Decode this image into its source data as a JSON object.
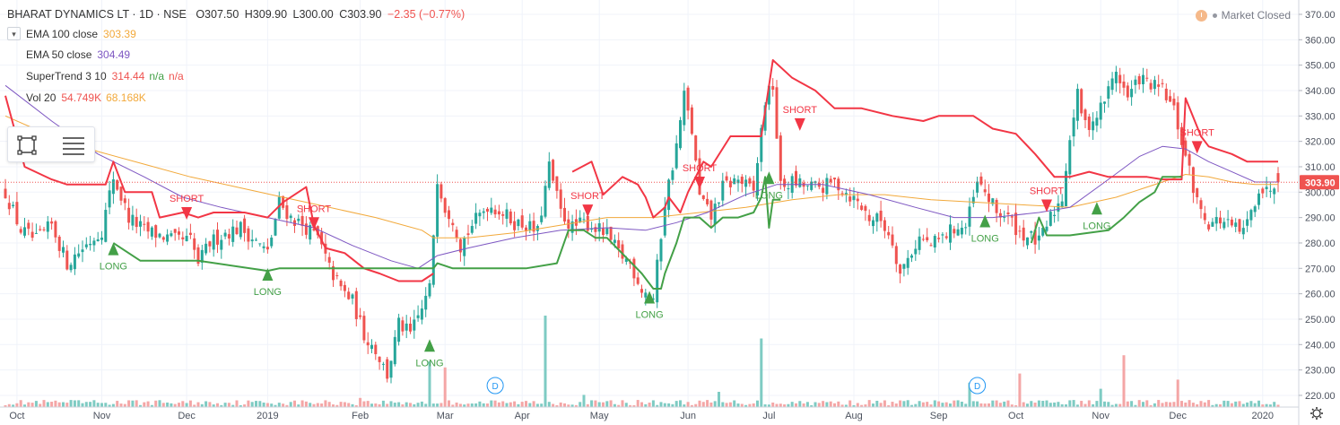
{
  "header": {
    "symbol": "BHARAT DYNAMICS LT",
    "sep1": "·",
    "interval": "1D",
    "sep2": "·",
    "exchange": "NSE",
    "o_label": "O",
    "o_value": "307.50",
    "h_label": "H",
    "h_value": "309.90",
    "l_label": "L",
    "l_value": "300.00",
    "c_label": "C",
    "c_value": "303.90",
    "change": "−2.35 (−0.77%)"
  },
  "market_status": "Market Closed",
  "indicators": [
    {
      "name": "EMA 100 close",
      "values": [
        "303.39"
      ],
      "colors": [
        "#f2a93b"
      ],
      "has_toggle": true
    },
    {
      "name": "EMA 50 close",
      "values": [
        "304.49"
      ],
      "colors": [
        "#7e57c2"
      ],
      "has_toggle": false
    },
    {
      "name": "SuperTrend 3 10",
      "values": [
        "314.44",
        "n/a",
        "n/a"
      ],
      "colors": [
        "#ef5350",
        "#43a047",
        "#ef5350"
      ],
      "has_toggle": false
    },
    {
      "name": "Vol 20",
      "values": [
        "54.749K",
        "68.168K"
      ],
      "colors": [
        "#ef5350",
        "#f2a93b"
      ],
      "has_toggle": false
    }
  ],
  "colors": {
    "up": "#26a69a",
    "down": "#ef5350",
    "st_up": "#43a047",
    "st_down": "#f23645",
    "ema100": "#f2a93b",
    "ema50": "#7e57c2",
    "vol_up": "#7ecbc3",
    "vol_down": "#f4a6a6"
  },
  "chart_data": {
    "type": "candlestick",
    "title": "BHARAT DYNAMICS LT · 1D · NSE",
    "ylim": [
      217,
      372
    ],
    "y_ticks": [
      220,
      230,
      240,
      250,
      260,
      270,
      280,
      290,
      300,
      310,
      320,
      330,
      340,
      350,
      360,
      370
    ],
    "y_tick_labels": [
      "220.00",
      "230.00",
      "240.00",
      "250.00",
      "260.00",
      "270.00",
      "280.00",
      "290.00",
      "300.00",
      "310.00",
      "320.00",
      "330.00",
      "340.00",
      "350.00",
      "360.00",
      "370.00"
    ],
    "x_ticks": [
      {
        "label": "Oct",
        "bar": 3
      },
      {
        "label": "Nov",
        "bar": 25
      },
      {
        "label": "Dec",
        "bar": 47
      },
      {
        "label": "2019",
        "bar": 68
      },
      {
        "label": "Feb",
        "bar": 92
      },
      {
        "label": "Mar",
        "bar": 114
      },
      {
        "label": "Apr",
        "bar": 134
      },
      {
        "label": "May",
        "bar": 154
      },
      {
        "label": "Jun",
        "bar": 177
      },
      {
        "label": "Jul",
        "bar": 198
      },
      {
        "label": "Aug",
        "bar": 220
      },
      {
        "label": "Sep",
        "bar": 242
      },
      {
        "label": "Oct",
        "bar": 262
      },
      {
        "label": "Nov",
        "bar": 284
      },
      {
        "label": "Dec",
        "bar": 304
      },
      {
        "label": "2020",
        "bar": 326
      }
    ],
    "last_price": 303.9,
    "last_price_label": "303.90",
    "close_anchors": [
      [
        0,
        300
      ],
      [
        4,
        285
      ],
      [
        8,
        281
      ],
      [
        12,
        287
      ],
      [
        16,
        272
      ],
      [
        20,
        278
      ],
      [
        25,
        285
      ],
      [
        28,
        306
      ],
      [
        32,
        290
      ],
      [
        36,
        285
      ],
      [
        40,
        283
      ],
      [
        44,
        281
      ],
      [
        48,
        281
      ],
      [
        50,
        272
      ],
      [
        53,
        280
      ],
      [
        57,
        284
      ],
      [
        61,
        286
      ],
      [
        64,
        282
      ],
      [
        68,
        276
      ],
      [
        71,
        296
      ],
      [
        74,
        290
      ],
      [
        78,
        286
      ],
      [
        81,
        282
      ],
      [
        84,
        270
      ],
      [
        87,
        262
      ],
      [
        90,
        257
      ],
      [
        93,
        244
      ],
      [
        96,
        238
      ],
      [
        99,
        228
      ],
      [
        102,
        248
      ],
      [
        105,
        244
      ],
      [
        108,
        254
      ],
      [
        110,
        262
      ],
      [
        112,
        306
      ],
      [
        114,
        294
      ],
      [
        116,
        290
      ],
      [
        118,
        279
      ],
      [
        121,
        287
      ],
      [
        125,
        295
      ],
      [
        128,
        293
      ],
      [
        132,
        288
      ],
      [
        135,
        287
      ],
      [
        138,
        284
      ],
      [
        141,
        310
      ],
      [
        144,
        292
      ],
      [
        147,
        286
      ],
      [
        150,
        288
      ],
      [
        153,
        286
      ],
      [
        156,
        283
      ],
      [
        159,
        276
      ],
      [
        162,
        272
      ],
      [
        165,
        262
      ],
      [
        168,
        258
      ],
      [
        171,
        296
      ],
      [
        174,
        318
      ],
      [
        176,
        338
      ],
      [
        178,
        324
      ],
      [
        180,
        298
      ],
      [
        183,
        290
      ],
      [
        186,
        302
      ],
      [
        190,
        305
      ],
      [
        194,
        300
      ],
      [
        197,
        336
      ],
      [
        199,
        342
      ],
      [
        201,
        302
      ],
      [
        204,
        304
      ],
      [
        208,
        302
      ],
      [
        212,
        302
      ],
      [
        215,
        304
      ],
      [
        218,
        300
      ],
      [
        221,
        296
      ],
      [
        224,
        290
      ],
      [
        227,
        289
      ],
      [
        230,
        281
      ],
      [
        232,
        268
      ],
      [
        234,
        274
      ],
      [
        237,
        282
      ],
      [
        240,
        279
      ],
      [
        243,
        282
      ],
      [
        246,
        286
      ],
      [
        249,
        286
      ],
      [
        252,
        303
      ],
      [
        254,
        300
      ],
      [
        257,
        292
      ],
      [
        260,
        290
      ],
      [
        263,
        284
      ],
      [
        266,
        282
      ],
      [
        268,
        280
      ],
      [
        271,
        290
      ],
      [
        274,
        298
      ],
      [
        276,
        322
      ],
      [
        278,
        338
      ],
      [
        280,
        326
      ],
      [
        283,
        330
      ],
      [
        286,
        340
      ],
      [
        288,
        348
      ],
      [
        291,
        337
      ],
      [
        294,
        345
      ],
      [
        297,
        342
      ],
      [
        300,
        340
      ],
      [
        303,
        332
      ],
      [
        305,
        320
      ],
      [
        307,
        308
      ],
      [
        309,
        296
      ],
      [
        312,
        288
      ],
      [
        315,
        289
      ],
      [
        318,
        286
      ],
      [
        321,
        284
      ],
      [
        323,
        292
      ],
      [
        325,
        302
      ],
      [
        327,
        300
      ],
      [
        329,
        304
      ]
    ],
    "supertrend_down_anchors": [
      [
        0,
        338
      ],
      [
        5,
        310
      ],
      [
        12,
        305
      ],
      [
        16,
        303
      ],
      [
        20,
        303
      ],
      [
        26,
        303
      ],
      [
        28,
        312
      ],
      [
        31,
        300
      ],
      [
        35,
        300
      ],
      [
        38,
        300
      ],
      [
        40,
        290
      ],
      [
        46,
        292
      ],
      [
        50,
        290
      ],
      [
        54,
        292
      ],
      [
        62,
        292
      ],
      [
        68,
        290
      ],
      [
        72,
        296
      ],
      [
        78,
        302
      ],
      [
        80,
        287
      ],
      [
        83,
        278
      ],
      [
        88,
        276
      ],
      [
        93,
        270
      ],
      [
        97,
        268
      ],
      [
        102,
        265
      ],
      [
        108,
        265
      ],
      [
        111,
        268
      ],
      [
        147,
        308
      ],
      [
        152,
        312
      ],
      [
        155,
        299
      ],
      [
        160,
        306
      ],
      [
        164,
        303
      ],
      [
        166,
        298
      ],
      [
        168,
        290
      ],
      [
        171,
        294
      ],
      [
        172,
        298
      ],
      [
        175,
        292
      ],
      [
        177,
        300
      ],
      [
        181,
        312
      ],
      [
        183,
        310
      ],
      [
        188,
        322
      ],
      [
        196,
        322
      ],
      [
        199,
        352
      ],
      [
        204,
        345
      ],
      [
        210,
        340
      ],
      [
        215,
        333
      ],
      [
        222,
        333
      ],
      [
        230,
        330
      ],
      [
        238,
        328
      ],
      [
        242,
        330
      ],
      [
        251,
        330
      ],
      [
        254,
        327
      ],
      [
        256,
        325
      ],
      [
        262,
        323
      ],
      [
        267,
        315
      ],
      [
        272,
        306
      ],
      [
        276,
        306
      ],
      [
        281,
        308
      ],
      [
        286,
        306
      ],
      [
        290,
        306
      ],
      [
        294,
        306
      ],
      [
        296,
        306
      ],
      [
        300,
        305
      ],
      [
        302,
        305
      ],
      [
        305,
        305
      ],
      [
        306,
        337
      ],
      [
        310,
        322
      ],
      [
        312,
        318
      ],
      [
        318,
        315
      ],
      [
        322,
        312
      ],
      [
        330,
        312
      ]
    ],
    "supertrend_up_anchors": [
      [
        28,
        280
      ],
      [
        35,
        273
      ],
      [
        40,
        273
      ],
      [
        46,
        273
      ],
      [
        50,
        273
      ],
      [
        68,
        269
      ],
      [
        71,
        270
      ],
      [
        78,
        270
      ],
      [
        81,
        270
      ],
      [
        111,
        270
      ],
      [
        112,
        272
      ],
      [
        116,
        270
      ],
      [
        125,
        270
      ],
      [
        135,
        270
      ],
      [
        143,
        272
      ],
      [
        146,
        285
      ],
      [
        150,
        285
      ],
      [
        153,
        282
      ],
      [
        156,
        282
      ],
      [
        165,
        268
      ],
      [
        168,
        262
      ],
      [
        170,
        262
      ],
      [
        171,
        268
      ],
      [
        174,
        280
      ],
      [
        176,
        290
      ],
      [
        180,
        290
      ],
      [
        183,
        286
      ],
      [
        186,
        290
      ],
      [
        190,
        290
      ],
      [
        194,
        292
      ],
      [
        196,
        298
      ],
      [
        197,
        306
      ],
      [
        198,
        286
      ],
      [
        199,
        297
      ],
      [
        201,
        297
      ],
      [
        266,
        280
      ],
      [
        268,
        290
      ],
      [
        270,
        283
      ],
      [
        276,
        283
      ],
      [
        286,
        285
      ],
      [
        290,
        290
      ],
      [
        294,
        296
      ],
      [
        298,
        300
      ],
      [
        300,
        306
      ],
      [
        304,
        306
      ],
      [
        305,
        306
      ]
    ],
    "ema100_anchors": [
      [
        0,
        330
      ],
      [
        12,
        322
      ],
      [
        24,
        316
      ],
      [
        36,
        311
      ],
      [
        48,
        306
      ],
      [
        60,
        302
      ],
      [
        72,
        298
      ],
      [
        84,
        294
      ],
      [
        96,
        290
      ],
      [
        108,
        285
      ],
      [
        111,
        282
      ],
      [
        120,
        282
      ],
      [
        132,
        284
      ],
      [
        144,
        287
      ],
      [
        156,
        290
      ],
      [
        168,
        290
      ],
      [
        180,
        292
      ],
      [
        192,
        294
      ],
      [
        204,
        297
      ],
      [
        216,
        299
      ],
      [
        228,
        299
      ],
      [
        240,
        297
      ],
      [
        252,
        296
      ],
      [
        264,
        295
      ],
      [
        276,
        294
      ],
      [
        288,
        298
      ],
      [
        300,
        304
      ],
      [
        306,
        307
      ],
      [
        312,
        306
      ],
      [
        318,
        304
      ],
      [
        324,
        303
      ],
      [
        330,
        303
      ]
    ],
    "ema50_anchors": [
      [
        0,
        342
      ],
      [
        12,
        328
      ],
      [
        24,
        315
      ],
      [
        36,
        306
      ],
      [
        46,
        298
      ],
      [
        56,
        294
      ],
      [
        68,
        290
      ],
      [
        80,
        286
      ],
      [
        90,
        279
      ],
      [
        100,
        273
      ],
      [
        107,
        270
      ],
      [
        112,
        275
      ],
      [
        120,
        278
      ],
      [
        132,
        282
      ],
      [
        144,
        285
      ],
      [
        156,
        286
      ],
      [
        166,
        285
      ],
      [
        174,
        288
      ],
      [
        182,
        292
      ],
      [
        192,
        299
      ],
      [
        200,
        303
      ],
      [
        212,
        303
      ],
      [
        224,
        299
      ],
      [
        236,
        294
      ],
      [
        246,
        290
      ],
      [
        256,
        290
      ],
      [
        268,
        292
      ],
      [
        276,
        294
      ],
      [
        286,
        305
      ],
      [
        294,
        314
      ],
      [
        300,
        318
      ],
      [
        306,
        317
      ],
      [
        312,
        312
      ],
      [
        318,
        308
      ],
      [
        324,
        304
      ],
      [
        330,
        304
      ]
    ],
    "signals": [
      {
        "type": "LONG",
        "bar": 28,
        "price": 278
      },
      {
        "type": "SHORT",
        "bar": 47,
        "price": 292
      },
      {
        "type": "LONG",
        "bar": 68,
        "price": 268
      },
      {
        "type": "SHORT",
        "bar": 80,
        "price": 288
      },
      {
        "type": "LONG",
        "bar": 110,
        "price": 240
      },
      {
        "type": "SHORT",
        "bar": 151,
        "price": 293
      },
      {
        "type": "LONG",
        "bar": 167,
        "price": 259
      },
      {
        "type": "SHORT",
        "bar": 180,
        "price": 304
      },
      {
        "type": "LONG",
        "bar": 198,
        "price": 306
      },
      {
        "type": "SHORT",
        "bar": 206,
        "price": 327
      },
      {
        "type": "LONG",
        "bar": 254,
        "price": 289
      },
      {
        "type": "SHORT",
        "bar": 270,
        "price": 295
      },
      {
        "type": "LONG",
        "bar": 283,
        "price": 294
      },
      {
        "type": "SHORT",
        "bar": 309,
        "price": 318
      }
    ],
    "volume_spikes": [
      [
        92,
        6
      ],
      [
        110,
        30
      ],
      [
        114,
        26
      ],
      [
        140,
        60
      ],
      [
        150,
        8
      ],
      [
        185,
        10
      ],
      [
        196,
        45
      ],
      [
        250,
        16
      ],
      [
        263,
        22
      ],
      [
        284,
        12
      ],
      [
        290,
        34
      ],
      [
        304,
        18
      ]
    ],
    "dividend_markers": [
      {
        "label": "D",
        "bar": 127
      },
      {
        "label": "D",
        "bar": 252
      }
    ]
  }
}
